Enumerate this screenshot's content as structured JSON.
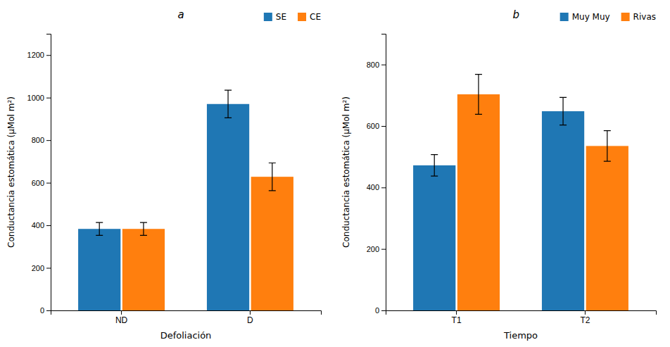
{
  "chart_data": [
    {
      "type": "bar",
      "categories": [
        "ND",
        "D"
      ],
      "series": [
        {
          "name": "SE",
          "values": [
            383,
            970
          ],
          "errors": [
            30,
            65
          ]
        },
        {
          "name": "CE",
          "values": [
            383,
            628
          ],
          "errors": [
            30,
            65
          ]
        }
      ],
      "xlabel": "Defoliación",
      "ylabel": "Conductancia estomática (μMol m²)",
      "ylim": [
        0,
        1300
      ],
      "yticks": [
        0,
        200,
        400,
        600,
        800,
        1000,
        1200
      ],
      "annotation": "a",
      "legend": "upper right",
      "grid": false
    },
    {
      "type": "bar",
      "categories": [
        "T1",
        "T2"
      ],
      "series": [
        {
          "name": "Muy Muy",
          "values": [
            472,
            648
          ],
          "errors": [
            35,
            45
          ]
        },
        {
          "name": "Rivas",
          "values": [
            703,
            535
          ],
          "errors": [
            65,
            50
          ]
        }
      ],
      "xlabel": "Tiempo",
      "ylabel": "Conductancia estomática (μMol m²)",
      "ylim": [
        0,
        900
      ],
      "yticks": [
        0,
        200,
        400,
        600,
        800
      ],
      "annotation": "b",
      "legend": "upper right",
      "grid": false
    }
  ]
}
